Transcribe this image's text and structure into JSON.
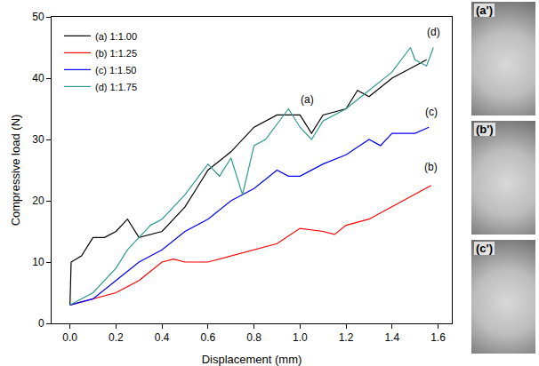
{
  "chart_data": {
    "type": "line",
    "xlabel": "Displacement (mm)",
    "ylabel": "Compressive load (N)",
    "xlim": [
      -0.08,
      1.66
    ],
    "ylim": [
      0,
      50
    ],
    "xticks": [
      {
        "value": 0,
        "label": "0.0"
      },
      {
        "value": 0.2,
        "label": "0.2"
      },
      {
        "value": 0.4,
        "label": "0.4"
      },
      {
        "value": 0.6,
        "label": "0.6"
      },
      {
        "value": 0.8,
        "label": "0.8"
      },
      {
        "value": 1,
        "label": "1.0"
      },
      {
        "value": 1.2,
        "label": "1.2"
      },
      {
        "value": 1.4,
        "label": "1.4"
      },
      {
        "value": 1.6,
        "label": "1.6"
      }
    ],
    "yticks": [
      0,
      10,
      20,
      30,
      40,
      50
    ],
    "legend": "top-left",
    "series": [
      {
        "name": "(a) 1:1.00",
        "color": "#000000",
        "x": [
          0,
          0.005,
          0.05,
          0.1,
          0.15,
          0.2,
          0.25,
          0.3,
          0.4,
          0.5,
          0.55,
          0.6,
          0.7,
          0.8,
          0.9,
          1.0,
          1.05,
          1.1,
          1.2,
          1.25,
          1.3,
          1.4,
          1.5,
          1.55
        ],
        "values": [
          3,
          10,
          11,
          14,
          14,
          15,
          17,
          14,
          15,
          19,
          22,
          25,
          28,
          32,
          34,
          34,
          31,
          34,
          35,
          38,
          37,
          40,
          42,
          43
        ]
      },
      {
        "name": "(b) 1:1.25",
        "color": "#ff0000",
        "x": [
          0,
          0.1,
          0.2,
          0.3,
          0.4,
          0.45,
          0.5,
          0.6,
          0.7,
          0.8,
          0.9,
          1.0,
          1.1,
          1.15,
          1.2,
          1.3,
          1.4,
          1.5,
          1.57
        ],
        "values": [
          3,
          4,
          5,
          7,
          10,
          10.5,
          10,
          10,
          11,
          12,
          13,
          15.5,
          15,
          14.5,
          16,
          17,
          19,
          21,
          22.5
        ]
      },
      {
        "name": "(c) 1:1.50",
        "color": "#0000ff",
        "x": [
          0,
          0.1,
          0.2,
          0.3,
          0.4,
          0.5,
          0.6,
          0.7,
          0.8,
          0.9,
          0.95,
          1.0,
          1.1,
          1.2,
          1.3,
          1.35,
          1.4,
          1.5,
          1.56
        ],
        "values": [
          3,
          4,
          7,
          10,
          12,
          15,
          17,
          20,
          22,
          25,
          24,
          24,
          26,
          27.5,
          30,
          29,
          31,
          31,
          32
        ]
      },
      {
        "name": "(d) 1:1.75",
        "color": "#2e9a8e",
        "x": [
          0,
          0.1,
          0.2,
          0.25,
          0.35,
          0.4,
          0.5,
          0.6,
          0.65,
          0.7,
          0.75,
          0.8,
          0.85,
          0.95,
          1.0,
          1.05,
          1.1,
          1.2,
          1.3,
          1.4,
          1.48,
          1.5,
          1.55,
          1.58
        ],
        "values": [
          3,
          5,
          9,
          12,
          16,
          17,
          21,
          26,
          24,
          27,
          21,
          29,
          30,
          35,
          32,
          30,
          33,
          35,
          38,
          41,
          45,
          43,
          42,
          45
        ]
      }
    ],
    "annotations": [
      {
        "text": "(a)",
        "x": 1.03,
        "y": 36.5
      },
      {
        "text": "(b)",
        "x": 1.57,
        "y": 25.5
      },
      {
        "text": "(c)",
        "x": 1.57,
        "y": 34.5
      },
      {
        "text": "(d)",
        "x": 1.58,
        "y": 47.5
      }
    ]
  },
  "photos": [
    {
      "label": "(a')"
    },
    {
      "label": "(b')"
    },
    {
      "label": "(c')"
    }
  ]
}
